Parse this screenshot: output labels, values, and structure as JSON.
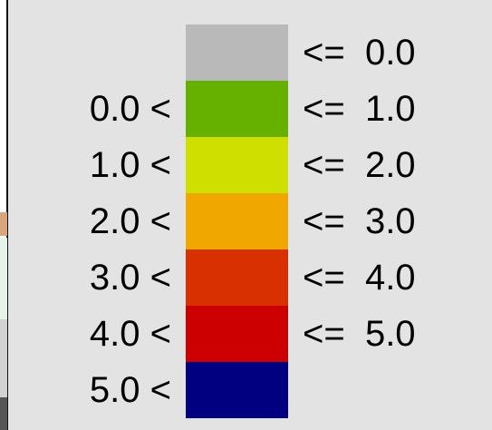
{
  "legend": {
    "rows": [
      {
        "lower_label": "",
        "upper_label": "<=  0.0",
        "color": "#b9b9b9"
      },
      {
        "lower_label": "0.0 <",
        "upper_label": "<=  1.0",
        "color": "#66b000"
      },
      {
        "lower_label": "1.0 <",
        "upper_label": "<=  2.0",
        "color": "#cfe000"
      },
      {
        "lower_label": "2.0 <",
        "upper_label": "<=  3.0",
        "color": "#f0a800"
      },
      {
        "lower_label": "3.0 <",
        "upper_label": "<=  4.0",
        "color": "#d93000"
      },
      {
        "lower_label": "4.0 <",
        "upper_label": "<=  5.0",
        "color": "#cc0000"
      },
      {
        "lower_label": "5.0 <",
        "upper_label": "",
        "color": "#000080"
      }
    ]
  }
}
